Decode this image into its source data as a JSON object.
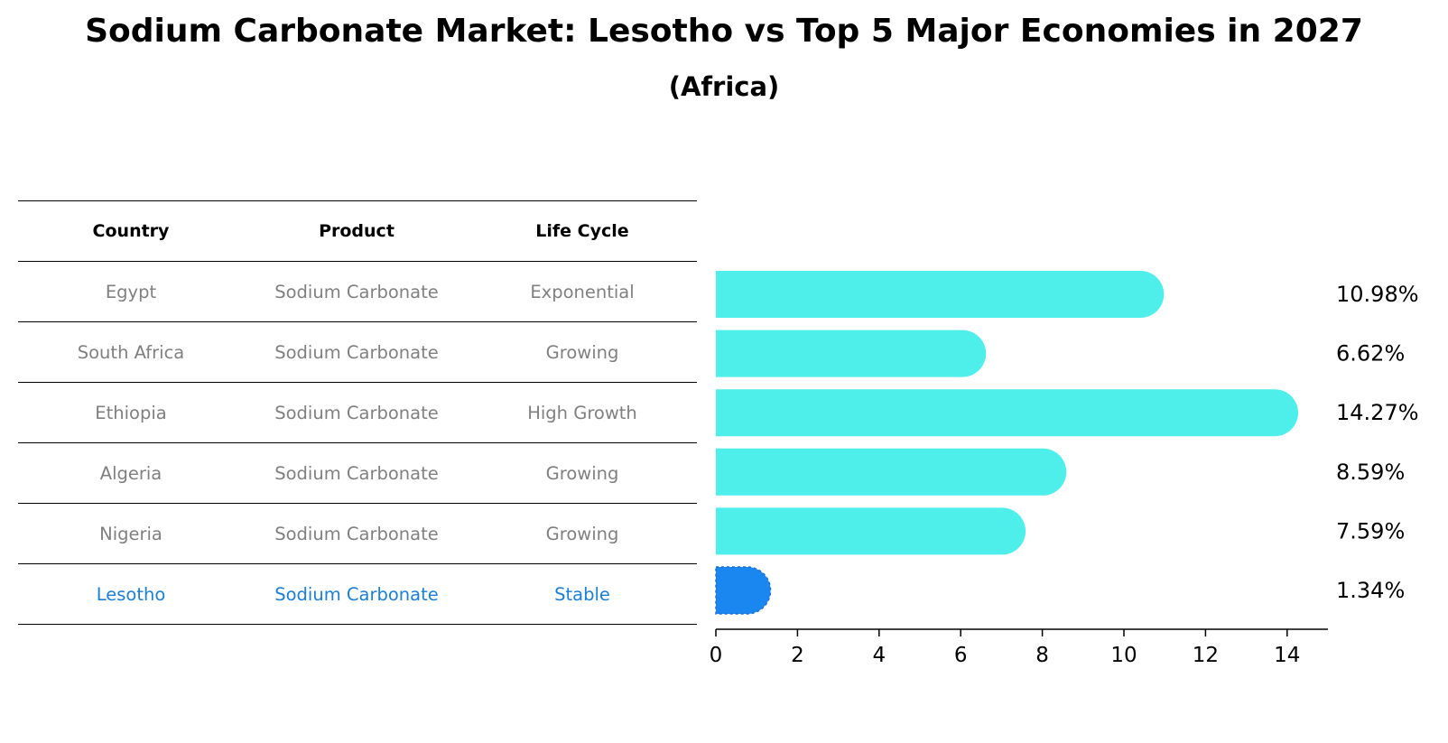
{
  "title": "Sodium Carbonate Market: Lesotho vs Top 5 Major Economies in 2027",
  "subtitle": "(Africa)",
  "table": {
    "headers": [
      "Country",
      "Product",
      "Life Cycle"
    ],
    "rows": [
      [
        "Egypt",
        "Sodium Carbonate",
        "Exponential"
      ],
      [
        "South Africa",
        "Sodium Carbonate",
        "Growing"
      ],
      [
        "Ethiopia",
        "Sodium Carbonate",
        "High Growth"
      ],
      [
        "Algeria",
        "Sodium Carbonate",
        "Growing"
      ],
      [
        "Nigeria",
        "Sodium Carbonate",
        "Growing"
      ],
      [
        "Lesotho",
        "Sodium Carbonate",
        "Stable"
      ]
    ],
    "highlight_row": 5
  },
  "chart_data": {
    "type": "bar",
    "orientation": "horizontal",
    "title": "Sodium Carbonate Market: Lesotho vs Top 5 Major Economies in 2027",
    "subtitle": "(Africa)",
    "categories": [
      "Egypt",
      "South Africa",
      "Ethiopia",
      "Algeria",
      "Nigeria",
      "Lesotho"
    ],
    "values": [
      10.98,
      6.62,
      14.27,
      8.59,
      7.59,
      1.34
    ],
    "value_labels": [
      "10.98%",
      "6.62%",
      "14.27%",
      "8.59%",
      "7.59%",
      "1.34%"
    ],
    "xlim": [
      0,
      15
    ],
    "xticks": [
      0,
      2,
      4,
      6,
      8,
      10,
      12,
      14
    ],
    "xlabel": "",
    "ylabel": "",
    "grid": false,
    "highlight_index": 5,
    "colors": {
      "bar": "#4eeeeb",
      "highlight": "#1a86f0",
      "axis": "#000000",
      "label": "#000000"
    }
  }
}
